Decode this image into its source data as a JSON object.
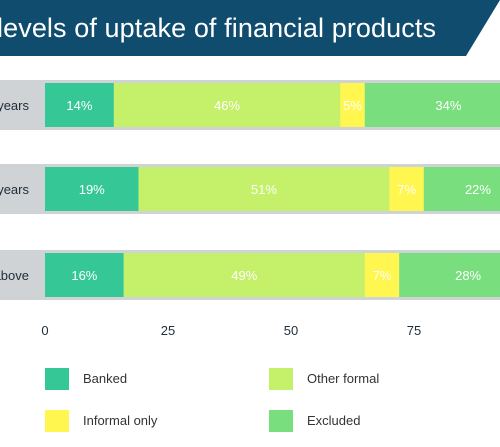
{
  "title": "levels of uptake of financial products",
  "colors": {
    "banner": "#0f4c6e",
    "banked": "#35c896",
    "other_formal": "#c4f06a",
    "informal_only": "#fff64f",
    "excluded": "#79de7e",
    "row_bg": "#cfd3d6"
  },
  "chart_data": {
    "type": "bar",
    "orientation": "horizontal",
    "stacked": true,
    "title": "levels of uptake of financial products",
    "categories": [
      "years",
      "years",
      "above"
    ],
    "xlim": [
      0,
      100
    ],
    "xticks": [
      0,
      25,
      50,
      75
    ],
    "series": [
      {
        "name": "Banked",
        "values": [
          14,
          19,
          16
        ],
        "labels": [
          "14%",
          "19%",
          "16%"
        ],
        "color": "#35c896"
      },
      {
        "name": "Other formal",
        "values": [
          46,
          51,
          49
        ],
        "labels": [
          "46%",
          "51%",
          "49%"
        ],
        "color": "#c4f06a"
      },
      {
        "name": "Informal only",
        "values": [
          5,
          7,
          7
        ],
        "labels": [
          "5%",
          "7%",
          "7%"
        ],
        "color": "#fff64f"
      },
      {
        "name": "Excluded",
        "values": [
          34,
          22,
          28
        ],
        "labels": [
          "34%",
          "22%",
          "28%"
        ],
        "color": "#79de7e"
      }
    ],
    "legend_position": "bottom"
  },
  "legend": [
    {
      "label": "Banked",
      "color": "#35c896"
    },
    {
      "label": "Other formal",
      "color": "#c4f06a"
    },
    {
      "label": "Informal only",
      "color": "#fff64f"
    },
    {
      "label": "Excluded",
      "color": "#79de7e"
    }
  ]
}
